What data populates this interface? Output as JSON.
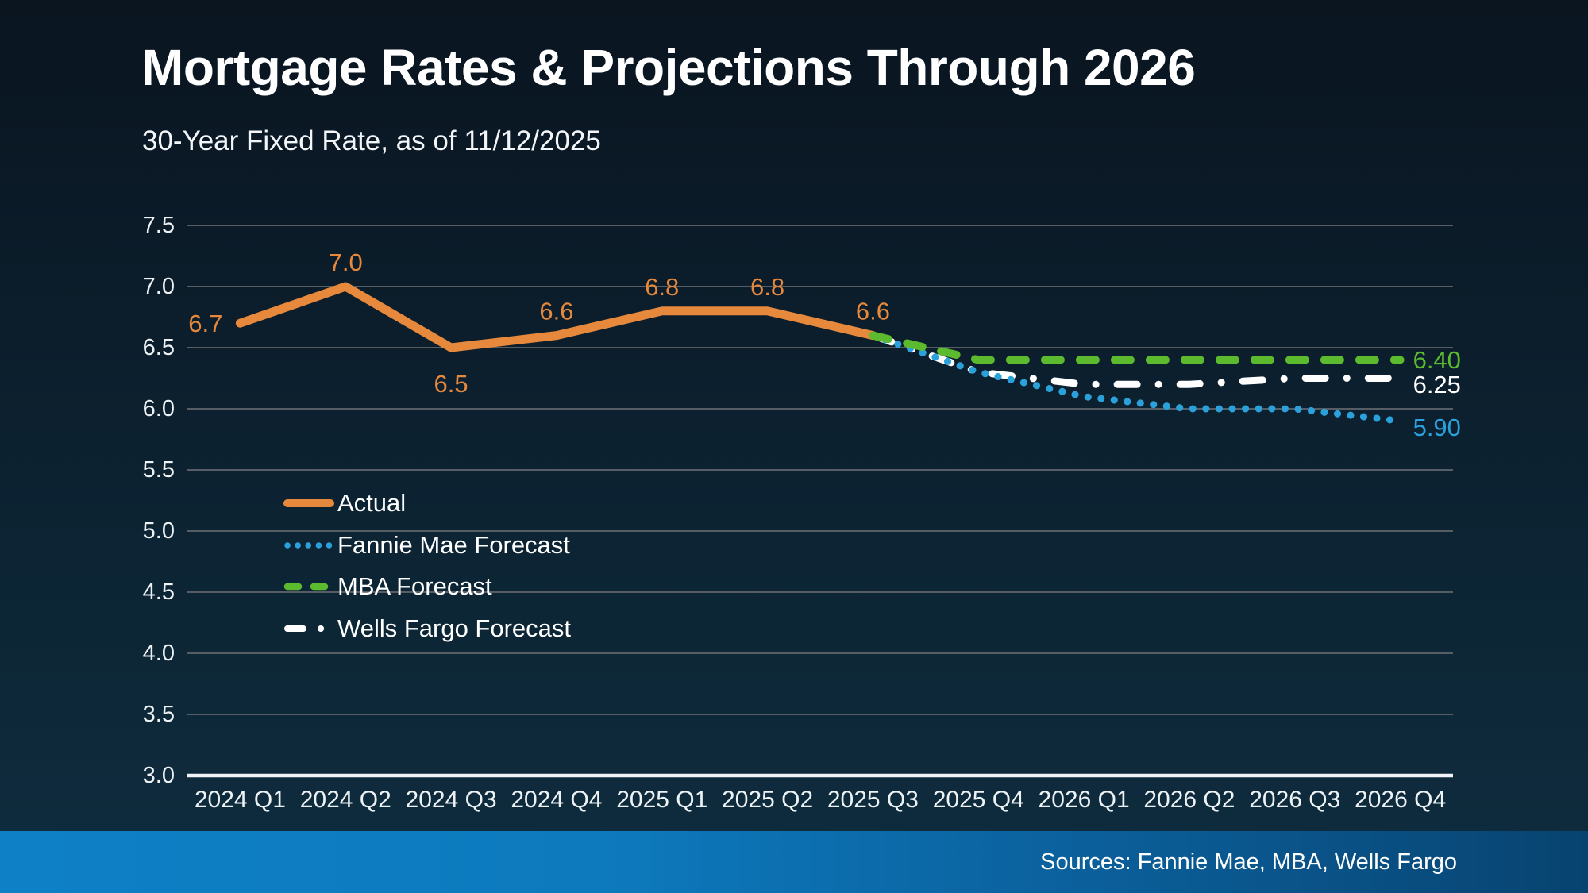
{
  "slide": {
    "title": "Mortgage Rates & Projections Through 2026",
    "subtitle": "30-Year Fixed Rate, as of 11/12/2025",
    "sources": "Sources: Fannie Mae, MBA, Wells Fargo"
  },
  "colors": {
    "background_top": "#0a1520",
    "background_bottom": "#0f2d40",
    "text": "#ffffff",
    "gridline": "#575d64",
    "axis_line": "#f0f4f6",
    "actual": "#e6893c",
    "fannie_mae": "#2ba1db",
    "mba": "#5cba2e",
    "wells_fargo": "#ffffff",
    "footer_gradient_left": "#0e80c6",
    "footer_gradient_right": "#084370"
  },
  "chart_data": {
    "type": "line",
    "title": "Mortgage Rates & Projections Through 2026",
    "subtitle": "30-Year Fixed Rate, as of 11/12/2025",
    "categories": [
      "2024 Q1",
      "2024 Q2",
      "2024 Q3",
      "2024 Q4",
      "2025 Q1",
      "2025 Q2",
      "2025 Q3",
      "2025 Q4",
      "2026 Q1",
      "2026 Q2",
      "2026 Q3",
      "2026 Q4"
    ],
    "xlabel": "",
    "ylabel": "",
    "ylim": [
      3.0,
      7.5
    ],
    "ytick_step": 0.5,
    "grid": "horizontal-only",
    "legend_position": "inside-left-middle",
    "series": [
      {
        "key": "actual",
        "name": "Actual",
        "color": "#e6893c",
        "style": "solid",
        "values": [
          6.7,
          7.0,
          6.5,
          6.6,
          6.8,
          6.8,
          6.6,
          null,
          null,
          null,
          null,
          null
        ],
        "point_labels": [
          "6.7",
          "7.0",
          "6.5",
          "6.6",
          "6.8",
          "6.8",
          "6.6",
          null,
          null,
          null,
          null,
          null
        ]
      },
      {
        "key": "fannie-mae",
        "name": "Fannie Mae Forecast",
        "color": "#2ba1db",
        "style": "dotted",
        "values": [
          null,
          null,
          null,
          null,
          null,
          null,
          6.6,
          6.3,
          6.1,
          6.0,
          6.0,
          5.9
        ],
        "end_label": "5.90"
      },
      {
        "key": "mba",
        "name": "MBA Forecast",
        "color": "#5cba2e",
        "style": "dashed",
        "values": [
          null,
          null,
          null,
          null,
          null,
          null,
          6.6,
          6.4,
          6.4,
          6.4,
          6.4,
          6.4
        ],
        "end_label": "6.40"
      },
      {
        "key": "wells-fargo",
        "name": "Wells Fargo Forecast",
        "color": "#ffffff",
        "style": "dashdot",
        "values": [
          null,
          null,
          null,
          null,
          null,
          null,
          6.6,
          6.3,
          6.2,
          6.2,
          6.25,
          6.25
        ],
        "end_label": "6.25"
      }
    ]
  }
}
